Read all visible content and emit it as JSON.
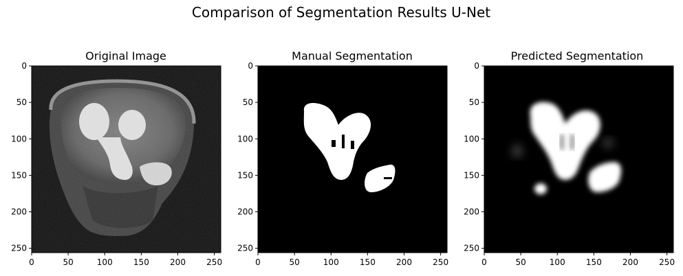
{
  "figure": {
    "title": "Comparison of Segmentation Results U-Net"
  },
  "panels": [
    {
      "title": "Original Image",
      "x_ticks": [
        "0",
        "50",
        "100",
        "150",
        "200",
        "250"
      ],
      "y_ticks": [
        "0",
        "50",
        "100",
        "150",
        "200",
        "250"
      ]
    },
    {
      "title": "Manual Segmentation",
      "x_ticks": [
        "0",
        "50",
        "100",
        "150",
        "200",
        "250"
      ],
      "y_ticks": [
        "0",
        "50",
        "100",
        "150",
        "200",
        "250"
      ]
    },
    {
      "title": "Predicted Segmentation",
      "x_ticks": [
        "0",
        "50",
        "100",
        "150",
        "200",
        "250"
      ],
      "y_ticks": [
        "0",
        "50",
        "100",
        "150",
        "200",
        "250"
      ]
    }
  ],
  "colors": {
    "background": "#000000",
    "mask": "#ffffff",
    "axis": "#000000"
  }
}
